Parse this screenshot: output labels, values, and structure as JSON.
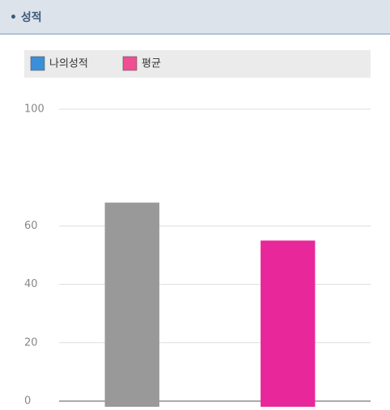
{
  "header": {
    "title": "성적"
  },
  "chart_data": {
    "type": "bar",
    "legend": [
      {
        "name": "나의성적",
        "color": "#3a8fd9"
      },
      {
        "name": "평균",
        "color": "#ef4f92"
      }
    ],
    "categories": [
      null,
      null
    ],
    "values": [
      68,
      55
    ],
    "colors": [
      "#999999",
      "#e8289a"
    ],
    "ylim": [
      0,
      100
    ],
    "yticks": [
      0,
      20,
      40,
      60,
      100
    ],
    "grid": true
  }
}
